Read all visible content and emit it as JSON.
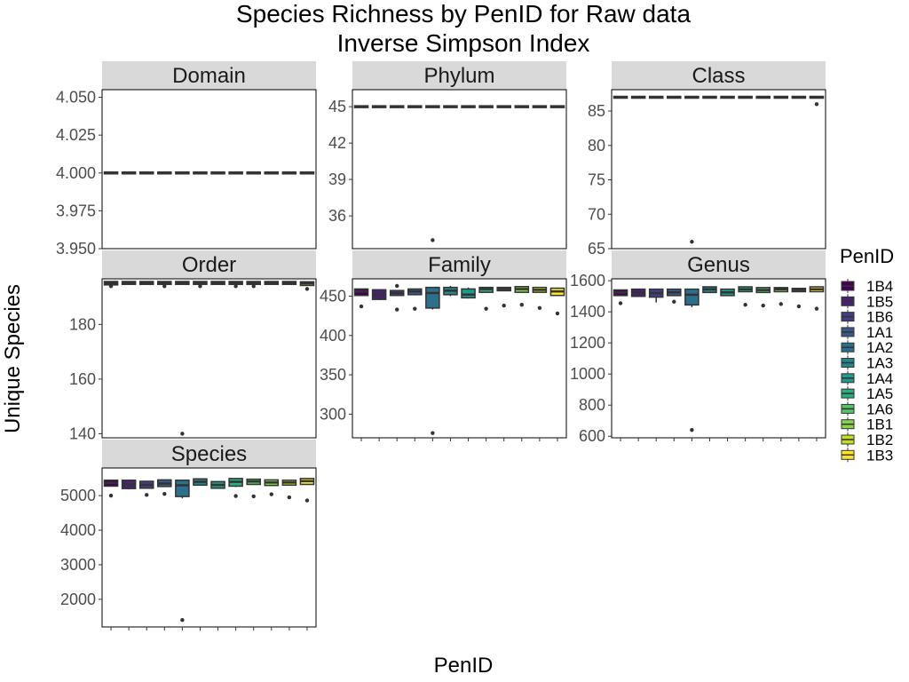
{
  "chart_data": {
    "type": "boxplot",
    "title_line1": "Species Richness by PenID for Raw data",
    "title_line2": "Inverse Simpson Index",
    "xlabel": "PenID",
    "ylabel": "Unique Species",
    "categories": [
      "1B4",
      "1B5",
      "1B6",
      "1A1",
      "1A2",
      "1A3",
      "1A4",
      "1A5",
      "1A6",
      "1B1",
      "1B2",
      "1B3"
    ],
    "colors": [
      "#440154",
      "#482173",
      "#433e85",
      "#38598c",
      "#2d708e",
      "#25858e",
      "#1e9b8a",
      "#2ab07f",
      "#52c569",
      "#86d549",
      "#c2df23",
      "#fde725"
    ],
    "legend": {
      "title": "PenID",
      "position": "right"
    },
    "grid": false,
    "panels": [
      {
        "name": "Domain",
        "ylim": [
          3.95,
          4.055
        ],
        "yticks": [
          3.95,
          3.975,
          4.0,
          4.025,
          4.05
        ],
        "yticklabels": [
          "3.950",
          "3.975",
          "4.000",
          "4.025",
          "4.050"
        ],
        "boxes": [
          {
            "q1": 4,
            "med": 4,
            "q3": 4,
            "lo": 4,
            "hi": 4,
            "out": []
          },
          {
            "q1": 4,
            "med": 4,
            "q3": 4,
            "lo": 4,
            "hi": 4,
            "out": []
          },
          {
            "q1": 4,
            "med": 4,
            "q3": 4,
            "lo": 4,
            "hi": 4,
            "out": []
          },
          {
            "q1": 4,
            "med": 4,
            "q3": 4,
            "lo": 4,
            "hi": 4,
            "out": []
          },
          {
            "q1": 4,
            "med": 4,
            "q3": 4,
            "lo": 4,
            "hi": 4,
            "out": []
          },
          {
            "q1": 4,
            "med": 4,
            "q3": 4,
            "lo": 4,
            "hi": 4,
            "out": []
          },
          {
            "q1": 4,
            "med": 4,
            "q3": 4,
            "lo": 4,
            "hi": 4,
            "out": []
          },
          {
            "q1": 4,
            "med": 4,
            "q3": 4,
            "lo": 4,
            "hi": 4,
            "out": []
          },
          {
            "q1": 4,
            "med": 4,
            "q3": 4,
            "lo": 4,
            "hi": 4,
            "out": []
          },
          {
            "q1": 4,
            "med": 4,
            "q3": 4,
            "lo": 4,
            "hi": 4,
            "out": []
          },
          {
            "q1": 4,
            "med": 4,
            "q3": 4,
            "lo": 4,
            "hi": 4,
            "out": []
          },
          {
            "q1": 4,
            "med": 4,
            "q3": 4,
            "lo": 4,
            "hi": 4,
            "out": []
          }
        ]
      },
      {
        "name": "Phylum",
        "ylim": [
          33.3,
          46.4
        ],
        "yticks": [
          36,
          39,
          42,
          45
        ],
        "yticklabels": [
          "36",
          "39",
          "42",
          "45"
        ],
        "boxes": [
          {
            "q1": 45,
            "med": 45,
            "q3": 45,
            "lo": 45,
            "hi": 45,
            "out": []
          },
          {
            "q1": 45,
            "med": 45,
            "q3": 45,
            "lo": 45,
            "hi": 45,
            "out": []
          },
          {
            "q1": 45,
            "med": 45,
            "q3": 45,
            "lo": 45,
            "hi": 45,
            "out": []
          },
          {
            "q1": 45,
            "med": 45,
            "q3": 45,
            "lo": 45,
            "hi": 45,
            "out": []
          },
          {
            "q1": 45,
            "med": 45,
            "q3": 45,
            "lo": 45,
            "hi": 45,
            "out": [
              34
            ]
          },
          {
            "q1": 45,
            "med": 45,
            "q3": 45,
            "lo": 45,
            "hi": 45,
            "out": []
          },
          {
            "q1": 45,
            "med": 45,
            "q3": 45,
            "lo": 45,
            "hi": 45,
            "out": []
          },
          {
            "q1": 45,
            "med": 45,
            "q3": 45,
            "lo": 45,
            "hi": 45,
            "out": []
          },
          {
            "q1": 45,
            "med": 45,
            "q3": 45,
            "lo": 45,
            "hi": 45,
            "out": []
          },
          {
            "q1": 45,
            "med": 45,
            "q3": 45,
            "lo": 45,
            "hi": 45,
            "out": []
          },
          {
            "q1": 45,
            "med": 45,
            "q3": 45,
            "lo": 45,
            "hi": 45,
            "out": []
          },
          {
            "q1": 45,
            "med": 45,
            "q3": 45,
            "lo": 45,
            "hi": 45,
            "out": []
          }
        ]
      },
      {
        "name": "Class",
        "ylim": [
          65,
          88.1
        ],
        "yticks": [
          65,
          70,
          75,
          80,
          85
        ],
        "yticklabels": [
          "65",
          "70",
          "75",
          "80",
          "85"
        ],
        "boxes": [
          {
            "q1": 87,
            "med": 87,
            "q3": 87,
            "lo": 87,
            "hi": 87,
            "out": []
          },
          {
            "q1": 87,
            "med": 87,
            "q3": 87,
            "lo": 87,
            "hi": 87,
            "out": []
          },
          {
            "q1": 87,
            "med": 87,
            "q3": 87,
            "lo": 87,
            "hi": 87,
            "out": []
          },
          {
            "q1": 87,
            "med": 87,
            "q3": 87,
            "lo": 87,
            "hi": 87,
            "out": []
          },
          {
            "q1": 87,
            "med": 87,
            "q3": 87,
            "lo": 87,
            "hi": 87,
            "out": [
              66
            ]
          },
          {
            "q1": 87,
            "med": 87,
            "q3": 87,
            "lo": 87,
            "hi": 87,
            "out": []
          },
          {
            "q1": 87,
            "med": 87,
            "q3": 87,
            "lo": 87,
            "hi": 87,
            "out": []
          },
          {
            "q1": 87,
            "med": 87,
            "q3": 87,
            "lo": 87,
            "hi": 87,
            "out": []
          },
          {
            "q1": 87,
            "med": 87,
            "q3": 87,
            "lo": 87,
            "hi": 87,
            "out": []
          },
          {
            "q1": 87,
            "med": 87,
            "q3": 87,
            "lo": 87,
            "hi": 87,
            "out": []
          },
          {
            "q1": 87,
            "med": 87,
            "q3": 87,
            "lo": 87,
            "hi": 87,
            "out": []
          },
          {
            "q1": 87,
            "med": 87,
            "q3": 87,
            "lo": 87,
            "hi": 87,
            "out": [
              86
            ]
          }
        ]
      },
      {
        "name": "Order",
        "ylim": [
          138.5,
          196.7
        ],
        "yticks": [
          140,
          160,
          180
        ],
        "yticklabels": [
          "140",
          "160",
          "180"
        ],
        "boxes": [
          {
            "q1": 194.8,
            "med": 195.2,
            "q3": 195.4,
            "lo": 194.5,
            "hi": 195.5,
            "out": [
              194
            ]
          },
          {
            "q1": 195,
            "med": 195.2,
            "q3": 195.4,
            "lo": 194.8,
            "hi": 195.5,
            "out": []
          },
          {
            "q1": 195,
            "med": 195.2,
            "q3": 195.4,
            "lo": 194.8,
            "hi": 195.5,
            "out": []
          },
          {
            "q1": 195,
            "med": 195.2,
            "q3": 195.4,
            "lo": 194.8,
            "hi": 195.5,
            "out": [
              194
            ]
          },
          {
            "q1": 195,
            "med": 195.2,
            "q3": 195.4,
            "lo": 194.8,
            "hi": 195.5,
            "out": [
              140
            ]
          },
          {
            "q1": 195,
            "med": 195.2,
            "q3": 195.4,
            "lo": 194.8,
            "hi": 195.5,
            "out": [
              194
            ]
          },
          {
            "q1": 195,
            "med": 195.2,
            "q3": 195.4,
            "lo": 194.8,
            "hi": 195.5,
            "out": []
          },
          {
            "q1": 195,
            "med": 195.2,
            "q3": 195.4,
            "lo": 194.8,
            "hi": 195.5,
            "out": [
              194
            ]
          },
          {
            "q1": 195,
            "med": 195.2,
            "q3": 195.4,
            "lo": 194.8,
            "hi": 195.5,
            "out": [
              194
            ]
          },
          {
            "q1": 195,
            "med": 195.2,
            "q3": 195.4,
            "lo": 194.8,
            "hi": 195.5,
            "out": []
          },
          {
            "q1": 195,
            "med": 195.2,
            "q3": 195.4,
            "lo": 194.8,
            "hi": 195.5,
            "out": []
          },
          {
            "q1": 194.6,
            "med": 195,
            "q3": 195.3,
            "lo": 194.3,
            "hi": 195.5,
            "out": [
              193
            ]
          }
        ]
      },
      {
        "name": "Family",
        "ylim": [
          270,
          472
        ],
        "yticks": [
          300,
          350,
          400,
          450
        ],
        "yticklabels": [
          "300",
          "350",
          "400",
          "450"
        ],
        "boxes": [
          {
            "q1": 452,
            "med": 456,
            "q3": 458,
            "lo": 450,
            "hi": 459,
            "out": [
              437
            ]
          },
          {
            "q1": 447,
            "med": 452,
            "q3": 457,
            "lo": 445,
            "hi": 459,
            "out": []
          },
          {
            "q1": 452,
            "med": 454,
            "q3": 456,
            "lo": 451,
            "hi": 457,
            "out": [
              433,
              463
            ]
          },
          {
            "q1": 453,
            "med": 456,
            "q3": 458,
            "lo": 451,
            "hi": 459,
            "out": [
              434
            ]
          },
          {
            "q1": 436,
            "med": 454,
            "q3": 460,
            "lo": 433,
            "hi": 461,
            "out": [
              276
            ]
          },
          {
            "q1": 453,
            "med": 457,
            "q3": 460,
            "lo": 450,
            "hi": 463,
            "out": []
          },
          {
            "q1": 449,
            "med": 452,
            "q3": 458,
            "lo": 447,
            "hi": 461,
            "out": []
          },
          {
            "q1": 456,
            "med": 459,
            "q3": 460,
            "lo": 455,
            "hi": 461,
            "out": [
              434
            ]
          },
          {
            "q1": 458,
            "med": 459,
            "q3": 460,
            "lo": 457,
            "hi": 461,
            "out": [
              438
            ]
          },
          {
            "q1": 456,
            "med": 459,
            "q3": 461,
            "lo": 455,
            "hi": 463,
            "out": [
              439
            ]
          },
          {
            "q1": 456,
            "med": 458,
            "q3": 460,
            "lo": 455,
            "hi": 461,
            "out": [
              435
            ]
          },
          {
            "q1": 452,
            "med": 456,
            "q3": 459,
            "lo": 451,
            "hi": 461,
            "out": [
              428
            ]
          }
        ]
      },
      {
        "name": "Genus",
        "ylim": [
          590,
          1612
        ],
        "yticks": [
          600,
          800,
          1000,
          1200,
          1400,
          1600
        ],
        "yticklabels": [
          "600",
          "800",
          "1000",
          "1200",
          "1400",
          "1600"
        ],
        "boxes": [
          {
            "q1": 1510,
            "med": 1525,
            "q3": 1535,
            "lo": 1505,
            "hi": 1540,
            "out": [
              1455
            ]
          },
          {
            "q1": 1505,
            "med": 1525,
            "q3": 1540,
            "lo": 1500,
            "hi": 1545,
            "out": []
          },
          {
            "q1": 1500,
            "med": 1520,
            "q3": 1540,
            "lo": 1460,
            "hi": 1545,
            "out": []
          },
          {
            "q1": 1510,
            "med": 1525,
            "q3": 1540,
            "lo": 1505,
            "hi": 1545,
            "out": [
              1465
            ]
          },
          {
            "q1": 1450,
            "med": 1510,
            "q3": 1540,
            "lo": 1430,
            "hi": 1545,
            "out": [
              640
            ]
          },
          {
            "q1": 1530,
            "med": 1545,
            "q3": 1555,
            "lo": 1525,
            "hi": 1560,
            "out": []
          },
          {
            "q1": 1510,
            "med": 1525,
            "q3": 1540,
            "lo": 1505,
            "hi": 1545,
            "out": []
          },
          {
            "q1": 1535,
            "med": 1545,
            "q3": 1555,
            "lo": 1530,
            "hi": 1560,
            "out": [
              1445
            ]
          },
          {
            "q1": 1530,
            "med": 1540,
            "q3": 1550,
            "lo": 1525,
            "hi": 1555,
            "out": [
              1440
            ]
          },
          {
            "q1": 1535,
            "med": 1545,
            "q3": 1550,
            "lo": 1530,
            "hi": 1555,
            "out": [
              1450
            ]
          },
          {
            "q1": 1535,
            "med": 1540,
            "q3": 1545,
            "lo": 1530,
            "hi": 1550,
            "out": [
              1435
            ]
          },
          {
            "q1": 1535,
            "med": 1545,
            "q3": 1555,
            "lo": 1530,
            "hi": 1560,
            "out": [
              1420
            ]
          }
        ]
      },
      {
        "name": "Species",
        "ylim": [
          1200,
          5800
        ],
        "yticks": [
          2000,
          3000,
          4000,
          5000
        ],
        "yticklabels": [
          "2000",
          "3000",
          "4000",
          "5000"
        ],
        "boxes": [
          {
            "q1": 5300,
            "med": 5370,
            "q3": 5420,
            "lo": 5270,
            "hi": 5440,
            "out": [
              5000
            ]
          },
          {
            "q1": 5230,
            "med": 5330,
            "q3": 5420,
            "lo": 5180,
            "hi": 5460,
            "out": []
          },
          {
            "q1": 5240,
            "med": 5310,
            "q3": 5390,
            "lo": 5220,
            "hi": 5420,
            "out": [
              5020
            ]
          },
          {
            "q1": 5290,
            "med": 5350,
            "q3": 5430,
            "lo": 5260,
            "hi": 5470,
            "out": [
              5050
            ]
          },
          {
            "q1": 5000,
            "med": 5300,
            "q3": 5420,
            "lo": 4920,
            "hi": 5440,
            "out": [
              1400
            ]
          },
          {
            "q1": 5330,
            "med": 5400,
            "q3": 5460,
            "lo": 5300,
            "hi": 5480,
            "out": []
          },
          {
            "q1": 5240,
            "med": 5310,
            "q3": 5380,
            "lo": 5210,
            "hi": 5410,
            "out": []
          },
          {
            "q1": 5300,
            "med": 5400,
            "q3": 5470,
            "lo": 5250,
            "hi": 5500,
            "out": [
              4990
            ]
          },
          {
            "q1": 5350,
            "med": 5410,
            "q3": 5450,
            "lo": 5330,
            "hi": 5480,
            "out": [
              4980
            ]
          },
          {
            "q1": 5320,
            "med": 5380,
            "q3": 5430,
            "lo": 5300,
            "hi": 5450,
            "out": [
              5040
            ]
          },
          {
            "q1": 5330,
            "med": 5380,
            "q3": 5420,
            "lo": 5310,
            "hi": 5450,
            "out": [
              4950
            ]
          },
          {
            "q1": 5350,
            "med": 5420,
            "q3": 5470,
            "lo": 5320,
            "hi": 5490,
            "out": [
              4860
            ]
          }
        ]
      }
    ]
  }
}
